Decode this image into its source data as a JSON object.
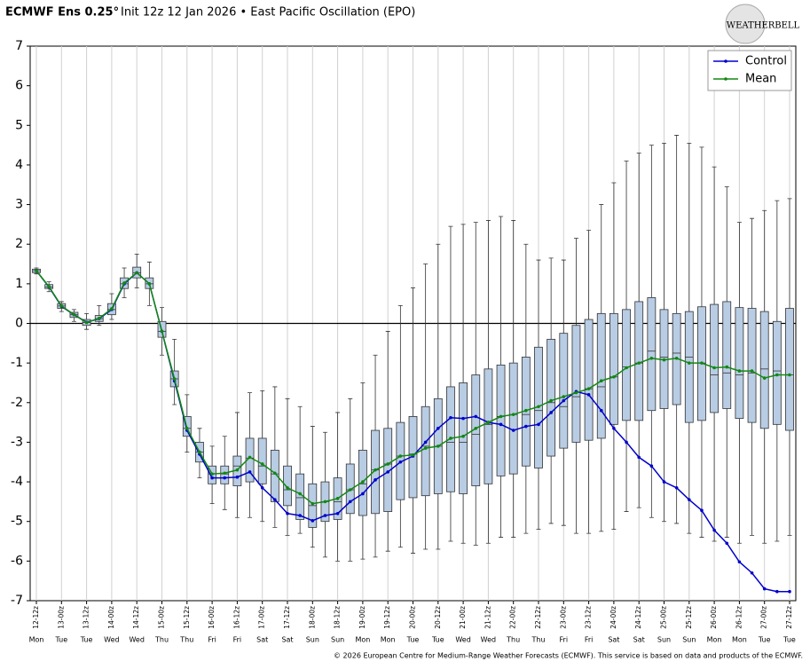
{
  "chart_data": {
    "type": "box-line",
    "title": "ECMWF Ens 0.25°",
    "subtitle": "Init 12z 12 Jan 2026 • East Pacific Oscillation (EPO)",
    "logo": "WEATHERBELL",
    "footer": "© 2026 European Centre for Medium-Range Weather Forecasts (ECMWF). This service is based on data and products of the ECMWF.",
    "categories": [
      "12-12z",
      null,
      "13-00z",
      null,
      "13-12z",
      null,
      "14-00z",
      null,
      "14-12z",
      null,
      "15-00z",
      null,
      "15-12z",
      null,
      "16-00z",
      null,
      "16-12z",
      null,
      "17-00z",
      null,
      "17-12z",
      null,
      "18-00z",
      null,
      "18-12z",
      null,
      "19-00z",
      null,
      "19-12z",
      null,
      "20-00z",
      null,
      "20-12z",
      null,
      "21-00z",
      null,
      "21-12z",
      null,
      "22-00z",
      null,
      "22-12z",
      null,
      "23-00z",
      null,
      "23-12z",
      null,
      "24-00z",
      null,
      "24-12z",
      null,
      "25-00z",
      null,
      "25-12z",
      null,
      "26-00z",
      null,
      "26-12z",
      null,
      "27-00z",
      null,
      "27-12z"
    ],
    "weekdays": [
      "Mon",
      null,
      "Tue",
      null,
      "Tue",
      null,
      "Wed",
      null,
      "Wed",
      null,
      "Thu",
      null,
      "Thu",
      null,
      "Fri",
      null,
      "Fri",
      null,
      "Sat",
      null,
      "Sat",
      null,
      "Sun",
      null,
      "Sun",
      null,
      "Mon",
      null,
      "Mon",
      null,
      "Tue",
      null,
      "Tue",
      null,
      "Wed",
      null,
      "Wed",
      null,
      "Thu",
      null,
      "Thu",
      null,
      "Fri",
      null,
      "Fri",
      null,
      "Sat",
      null,
      "Sat",
      null,
      "Sun",
      null,
      "Sun",
      null,
      "Mon",
      null,
      "Mon",
      null,
      "Tue",
      null,
      "Tue"
    ],
    "ylim": [
      -7,
      7
    ],
    "yticks": [
      -7,
      -6,
      -5,
      -4,
      -3,
      -2,
      -1,
      0,
      1,
      2,
      3,
      4,
      5,
      6,
      7
    ],
    "grid": true,
    "legend": "upper right",
    "box_color": "#b8cce4",
    "ensemble": {
      "max": [
        1.4,
        1.05,
        0.55,
        0.35,
        0.25,
        0.45,
        0.75,
        1.4,
        1.75,
        1.55,
        0.4,
        -0.4,
        -1.8,
        -2.65,
        -3.1,
        -2.85,
        -2.25,
        -1.75,
        -1.7,
        -1.6,
        -1.9,
        -2.1,
        -2.6,
        -2.75,
        -2.25,
        -1.9,
        -1.5,
        -0.8,
        -0.2,
        0.45,
        0.9,
        1.5,
        2.0,
        2.45,
        2.5,
        2.55,
        2.6,
        2.7,
        2.6,
        2.0,
        1.6,
        1.65,
        1.6,
        2.15,
        2.35,
        3.0,
        3.55,
        4.1,
        4.3,
        4.5,
        4.55,
        4.75,
        4.55,
        4.45,
        3.95,
        3.45,
        2.55,
        2.65,
        2.85,
        3.1,
        3.15
      ],
      "q3": [
        1.37,
        0.98,
        0.5,
        0.28,
        0.1,
        0.2,
        0.5,
        1.15,
        1.42,
        1.15,
        0.05,
        -1.2,
        -2.35,
        -3.0,
        -3.6,
        -3.6,
        -3.35,
        -2.9,
        -2.9,
        -3.2,
        -3.6,
        -3.8,
        -4.05,
        -4.0,
        -3.9,
        -3.55,
        -3.2,
        -2.7,
        -2.65,
        -2.5,
        -2.35,
        -2.1,
        -1.9,
        -1.6,
        -1.5,
        -1.3,
        -1.15,
        -1.05,
        -1.0,
        -0.85,
        -0.6,
        -0.4,
        -0.25,
        -0.05,
        0.1,
        0.25,
        0.25,
        0.35,
        0.55,
        0.65,
        0.35,
        0.25,
        0.3,
        0.42,
        0.48,
        0.55,
        0.4,
        0.38,
        0.3,
        0.05,
        0.38
      ],
      "median": [
        1.33,
        0.92,
        0.44,
        0.22,
        0.02,
        0.12,
        0.35,
        1.0,
        1.28,
        1.0,
        -0.2,
        -1.4,
        -2.65,
        -3.25,
        -3.8,
        -3.8,
        -3.6,
        -3.4,
        -3.6,
        -3.8,
        -4.2,
        -4.4,
        -4.6,
        -4.5,
        -4.5,
        -4.2,
        -4.05,
        -3.7,
        -3.55,
        -3.35,
        -3.3,
        -3.1,
        -3.1,
        -3.0,
        -3.0,
        -2.8,
        -2.55,
        -2.35,
        -2.3,
        -2.3,
        -2.2,
        -2.0,
        -2.1,
        -1.85,
        -1.65,
        -1.6,
        -1.35,
        -1.1,
        -1.0,
        -0.7,
        -0.85,
        -0.75,
        -0.85,
        -1.0,
        -1.3,
        -1.25,
        -1.3,
        -1.25,
        -1.15,
        -1.2,
        -1.3
      ],
      "q1": [
        1.28,
        0.88,
        0.38,
        0.15,
        -0.05,
        0.05,
        0.22,
        0.88,
        1.15,
        0.88,
        -0.35,
        -1.6,
        -2.85,
        -3.5,
        -4.05,
        -4.05,
        -4.1,
        -4.0,
        -4.05,
        -4.5,
        -4.6,
        -4.95,
        -5.15,
        -5.0,
        -4.95,
        -4.8,
        -4.85,
        -4.8,
        -4.75,
        -4.45,
        -4.4,
        -4.35,
        -4.3,
        -4.25,
        -4.3,
        -4.1,
        -4.05,
        -3.85,
        -3.8,
        -3.6,
        -3.65,
        -3.35,
        -3.15,
        -3.0,
        -2.95,
        -2.9,
        -2.55,
        -2.45,
        -2.45,
        -2.2,
        -2.15,
        -2.05,
        -2.5,
        -2.45,
        -2.25,
        -2.15,
        -2.4,
        -2.5,
        -2.65,
        -2.55,
        -2.7
      ],
      "min": [
        1.25,
        0.8,
        0.3,
        0.05,
        -0.15,
        -0.05,
        0.1,
        0.65,
        0.9,
        0.45,
        -0.8,
        -2.05,
        -3.25,
        -3.9,
        -4.55,
        -4.7,
        -4.9,
        -4.9,
        -5.0,
        -5.15,
        -5.35,
        -5.3,
        -5.65,
        -5.9,
        -6.0,
        -6.0,
        -5.95,
        -5.9,
        -5.75,
        -5.65,
        -5.8,
        -5.7,
        -5.7,
        -5.5,
        -5.55,
        -5.6,
        -5.55,
        -5.4,
        -5.4,
        -5.3,
        -5.2,
        -5.05,
        -5.1,
        -5.3,
        -5.3,
        -5.25,
        -5.2,
        -4.75,
        -4.65,
        -4.9,
        -5.0,
        -5.05,
        -5.3,
        -5.4,
        -5.5,
        -5.4,
        -5.55,
        -5.35,
        -5.55,
        -5.5,
        -5.35
      ]
    },
    "series": [
      {
        "name": "Control",
        "color": "#0000cc",
        "values": [
          1.33,
          0.92,
          0.43,
          0.22,
          0.03,
          0.12,
          0.35,
          1.0,
          1.28,
          1.0,
          -0.2,
          -1.45,
          -2.7,
          -3.3,
          -3.9,
          -3.9,
          -3.88,
          -3.75,
          -4.15,
          -4.45,
          -4.8,
          -4.85,
          -4.98,
          -4.85,
          -4.8,
          -4.5,
          -4.3,
          -3.95,
          -3.75,
          -3.5,
          -3.35,
          -3.0,
          -2.65,
          -2.38,
          -2.4,
          -2.35,
          -2.5,
          -2.55,
          -2.7,
          -2.6,
          -2.55,
          -2.25,
          -1.95,
          -1.72,
          -1.8,
          -2.2,
          -2.65,
          -3.0,
          -3.38,
          -3.6,
          -4.0,
          -4.15,
          -4.45,
          -4.72,
          -5.22,
          -5.55,
          -6.02,
          -6.3,
          -6.7,
          -6.77,
          -6.77
        ]
      },
      {
        "name": "Mean",
        "color": "#118811",
        "values": [
          1.33,
          0.93,
          0.44,
          0.22,
          0.02,
          0.13,
          0.37,
          1.02,
          1.28,
          1.0,
          -0.2,
          -1.4,
          -2.65,
          -3.25,
          -3.8,
          -3.78,
          -3.7,
          -3.38,
          -3.55,
          -3.78,
          -4.15,
          -4.3,
          -4.55,
          -4.5,
          -4.42,
          -4.2,
          -4.0,
          -3.7,
          -3.55,
          -3.35,
          -3.32,
          -3.15,
          -3.1,
          -2.9,
          -2.85,
          -2.65,
          -2.5,
          -2.35,
          -2.3,
          -2.2,
          -2.1,
          -1.95,
          -1.85,
          -1.75,
          -1.65,
          -1.45,
          -1.35,
          -1.12,
          -1.0,
          -0.88,
          -0.92,
          -0.88,
          -1.0,
          -1.0,
          -1.12,
          -1.1,
          -1.2,
          -1.2,
          -1.38,
          -1.3,
          -1.3
        ]
      }
    ]
  }
}
